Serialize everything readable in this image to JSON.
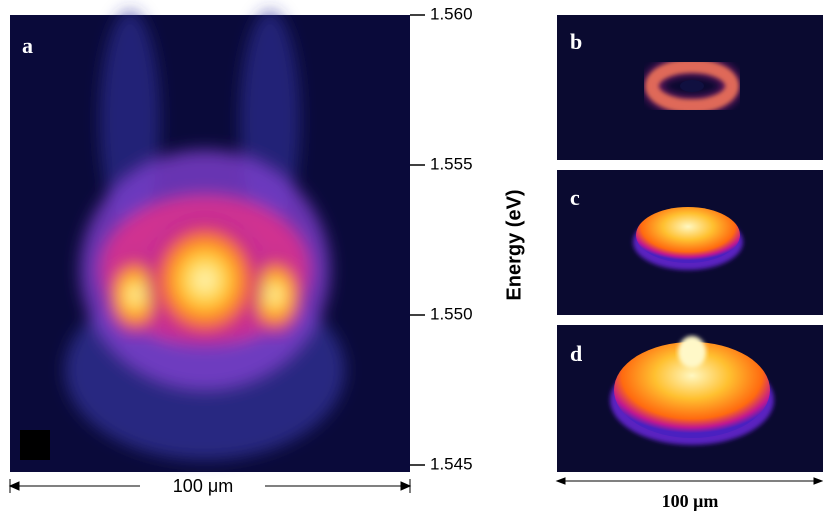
{
  "panel_a": {
    "label": "a",
    "scale_bar": "100 μm",
    "energy_axis": {
      "title": "Energy (eV)",
      "ylim": [
        1.545,
        1.56
      ],
      "yticks": [
        {
          "value": 1.56,
          "label": "1.560"
        },
        {
          "value": 1.555,
          "label": "1.555"
        },
        {
          "value": 1.55,
          "label": "1.550"
        },
        {
          "value": 1.545,
          "label": "1.545"
        }
      ]
    }
  },
  "panels": [
    {
      "label": "b"
    },
    {
      "label": "c"
    },
    {
      "label": "d"
    }
  ],
  "scale_bar_right": "100 μm"
}
